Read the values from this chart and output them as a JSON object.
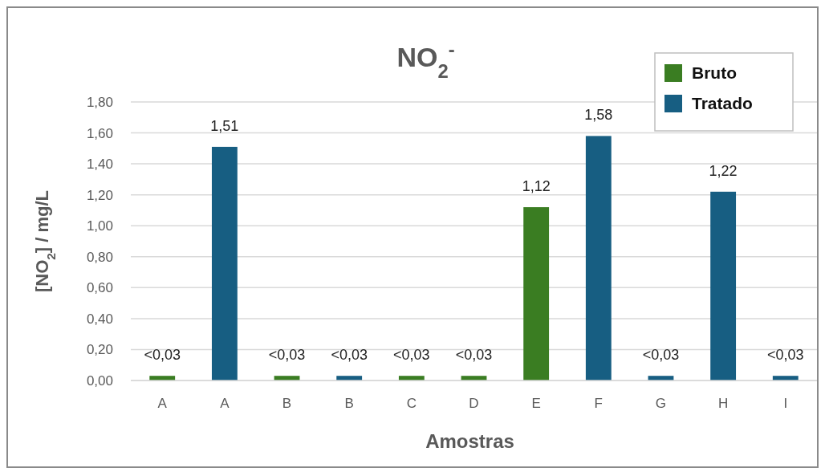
{
  "chart_data": {
    "type": "bar",
    "title": "NO$_{2}$$^{-}$",
    "xlabel": "Amostras",
    "ylabel": "[NO$_{2}$] / mg/L",
    "categories": [
      "A",
      "A",
      "B",
      "B",
      "C",
      "D",
      "E",
      "F",
      "G",
      "H",
      "I"
    ],
    "series": [
      {
        "name": "Bruto",
        "color": "#3a7d22",
        "values": [
          0.03,
          null,
          0.03,
          null,
          0.03,
          0.03,
          1.12,
          null,
          null,
          null,
          null
        ],
        "value_labels": [
          "<0,03",
          null,
          "<0,03",
          null,
          "<0,03",
          "<0,03",
          "1,12",
          null,
          null,
          null,
          null
        ]
      },
      {
        "name": "Tratado",
        "color": "#175e82",
        "values": [
          null,
          1.51,
          null,
          0.03,
          null,
          null,
          null,
          1.58,
          0.03,
          1.22,
          0.03
        ],
        "value_labels": [
          null,
          "1,51",
          null,
          "<0,03",
          null,
          null,
          null,
          "1,58",
          "<0,03",
          "1,22",
          "<0,03"
        ]
      }
    ],
    "ylim": [
      0,
      1.8
    ],
    "yticks": [
      {
        "value": 0,
        "label": "0,00"
      },
      {
        "value": 0.2,
        "label": "0,20"
      },
      {
        "value": 0.4,
        "label": "0,40"
      },
      {
        "value": 0.6,
        "label": "0,60"
      },
      {
        "value": 0.8,
        "label": "0,80"
      },
      {
        "value": 1,
        "label": "1,00"
      },
      {
        "value": 1.2,
        "label": "1,20"
      },
      {
        "value": 1.4,
        "label": "1,40"
      },
      {
        "value": 1.6,
        "label": "1,60"
      },
      {
        "value": 1.8,
        "label": "1,80"
      }
    ],
    "grid": "y",
    "legend": "top right"
  }
}
